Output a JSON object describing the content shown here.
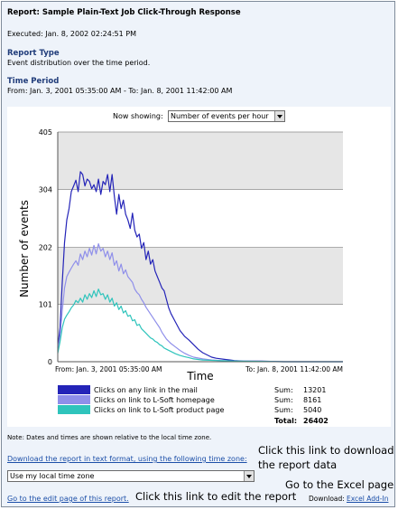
{
  "report": {
    "title": "Report: Sample Plain-Text Job Click-Through Response",
    "executed": "Executed: Jan. 8, 2002 02:24:51 PM",
    "type_heading": "Report Type",
    "type_text": "Event distribution over the time period.",
    "period_heading": "Time Period",
    "period_text": "From: Jan. 3, 2001 05:35:00 AM - To: Jan. 8, 2001 11:42:00 AM"
  },
  "controls": {
    "now_showing_label": "Now showing:",
    "now_showing_value": "Number of events per hour"
  },
  "chart_data": {
    "type": "line",
    "ylabel": "Number of events",
    "xlabel": "Time",
    "y_ticks": [
      0,
      101,
      202,
      304,
      405
    ],
    "ylim": [
      0,
      405
    ],
    "x_tick_labels": [
      "From: Jan. 3, 2001 05:35:00 AM",
      "To: Jan. 8, 2001 11:42:00 AM"
    ],
    "x_range_hours": [
      0,
      126
    ],
    "grid": true,
    "series": [
      {
        "name": "Clicks on any link in the mail",
        "color": "#2424b8",
        "sum": "13201",
        "points": [
          [
            0,
            25
          ],
          [
            1,
            60
          ],
          [
            2,
            140
          ],
          [
            3,
            210
          ],
          [
            4,
            250
          ],
          [
            5,
            270
          ],
          [
            6,
            300
          ],
          [
            7,
            310
          ],
          [
            8,
            320
          ],
          [
            9,
            300
          ],
          [
            10,
            335
          ],
          [
            11,
            330
          ],
          [
            12,
            310
          ],
          [
            13,
            322
          ],
          [
            14,
            318
          ],
          [
            15,
            305
          ],
          [
            16,
            312
          ],
          [
            17,
            300
          ],
          [
            18,
            322
          ],
          [
            19,
            295
          ],
          [
            20,
            318
          ],
          [
            21,
            312
          ],
          [
            22,
            330
          ],
          [
            23,
            300
          ],
          [
            24,
            330
          ],
          [
            25,
            292
          ],
          [
            26,
            260
          ],
          [
            27,
            295
          ],
          [
            28,
            270
          ],
          [
            29,
            285
          ],
          [
            30,
            260
          ],
          [
            31,
            250
          ],
          [
            32,
            235
          ],
          [
            33,
            262
          ],
          [
            34,
            232
          ],
          [
            35,
            220
          ],
          [
            36,
            225
          ],
          [
            37,
            200
          ],
          [
            38,
            210
          ],
          [
            39,
            180
          ],
          [
            40,
            195
          ],
          [
            41,
            172
          ],
          [
            42,
            180
          ],
          [
            43,
            160
          ],
          [
            44,
            150
          ],
          [
            45,
            140
          ],
          [
            46,
            130
          ],
          [
            47,
            125
          ],
          [
            48,
            110
          ],
          [
            49,
            95
          ],
          [
            50,
            85
          ],
          [
            52,
            70
          ],
          [
            54,
            55
          ],
          [
            56,
            45
          ],
          [
            58,
            38
          ],
          [
            60,
            30
          ],
          [
            62,
            22
          ],
          [
            64,
            16
          ],
          [
            66,
            12
          ],
          [
            68,
            8
          ],
          [
            70,
            6
          ],
          [
            74,
            4
          ],
          [
            78,
            2
          ],
          [
            82,
            1
          ],
          [
            90,
            1
          ],
          [
            100,
            0
          ],
          [
            126,
            0
          ]
        ]
      },
      {
        "name": "Clicks on link to L-Soft homepage",
        "color": "#8f8fea",
        "sum": "8161",
        "points": [
          [
            0,
            20
          ],
          [
            1,
            45
          ],
          [
            2,
            90
          ],
          [
            3,
            130
          ],
          [
            4,
            150
          ],
          [
            5,
            158
          ],
          [
            6,
            165
          ],
          [
            7,
            172
          ],
          [
            8,
            178
          ],
          [
            9,
            170
          ],
          [
            10,
            190
          ],
          [
            11,
            180
          ],
          [
            12,
            195
          ],
          [
            13,
            185
          ],
          [
            14,
            200
          ],
          [
            15,
            188
          ],
          [
            16,
            205
          ],
          [
            17,
            190
          ],
          [
            18,
            208
          ],
          [
            19,
            195
          ],
          [
            20,
            200
          ],
          [
            21,
            185
          ],
          [
            22,
            195
          ],
          [
            23,
            180
          ],
          [
            24,
            192
          ],
          [
            25,
            170
          ],
          [
            26,
            178
          ],
          [
            27,
            160
          ],
          [
            28,
            172
          ],
          [
            29,
            155
          ],
          [
            30,
            162
          ],
          [
            31,
            150
          ],
          [
            32,
            145
          ],
          [
            33,
            140
          ],
          [
            34,
            128
          ],
          [
            35,
            122
          ],
          [
            36,
            118
          ],
          [
            37,
            110
          ],
          [
            38,
            104
          ],
          [
            39,
            96
          ],
          [
            40,
            90
          ],
          [
            41,
            84
          ],
          [
            42,
            78
          ],
          [
            43,
            72
          ],
          [
            44,
            66
          ],
          [
            45,
            60
          ],
          [
            46,
            52
          ],
          [
            47,
            46
          ],
          [
            48,
            40
          ],
          [
            50,
            32
          ],
          [
            52,
            26
          ],
          [
            54,
            20
          ],
          [
            56,
            15
          ],
          [
            58,
            11
          ],
          [
            60,
            8
          ],
          [
            64,
            5
          ],
          [
            68,
            3
          ],
          [
            72,
            2
          ],
          [
            80,
            1
          ],
          [
            100,
            0
          ],
          [
            126,
            0
          ]
        ]
      },
      {
        "name": "Clicks on link to L-Soft product page",
        "color": "#2fc4bc",
        "sum": "5040",
        "points": [
          [
            0,
            15
          ],
          [
            1,
            35
          ],
          [
            2,
            60
          ],
          [
            3,
            75
          ],
          [
            4,
            82
          ],
          [
            5,
            88
          ],
          [
            6,
            95
          ],
          [
            7,
            100
          ],
          [
            8,
            108
          ],
          [
            9,
            104
          ],
          [
            10,
            112
          ],
          [
            11,
            105
          ],
          [
            12,
            118
          ],
          [
            13,
            110
          ],
          [
            14,
            120
          ],
          [
            15,
            113
          ],
          [
            16,
            125
          ],
          [
            17,
            115
          ],
          [
            18,
            128
          ],
          [
            19,
            118
          ],
          [
            20,
            120
          ],
          [
            21,
            110
          ],
          [
            22,
            118
          ],
          [
            23,
            105
          ],
          [
            24,
            112
          ],
          [
            25,
            98
          ],
          [
            26,
            104
          ],
          [
            27,
            92
          ],
          [
            28,
            98
          ],
          [
            29,
            86
          ],
          [
            30,
            90
          ],
          [
            31,
            80
          ],
          [
            32,
            82
          ],
          [
            33,
            72
          ],
          [
            34,
            74
          ],
          [
            35,
            64
          ],
          [
            36,
            66
          ],
          [
            37,
            58
          ],
          [
            38,
            54
          ],
          [
            39,
            50
          ],
          [
            40,
            46
          ],
          [
            41,
            42
          ],
          [
            42,
            40
          ],
          [
            43,
            36
          ],
          [
            44,
            34
          ],
          [
            45,
            30
          ],
          [
            46,
            28
          ],
          [
            47,
            24
          ],
          [
            48,
            22
          ],
          [
            50,
            18
          ],
          [
            52,
            14
          ],
          [
            54,
            11
          ],
          [
            56,
            9
          ],
          [
            58,
            7
          ],
          [
            60,
            5
          ],
          [
            64,
            3
          ],
          [
            70,
            2
          ],
          [
            80,
            1
          ],
          [
            100,
            0
          ],
          [
            126,
            0
          ]
        ]
      }
    ],
    "total_label": "Total:",
    "total": "26402"
  },
  "legend": {
    "sum_label": "Sum:"
  },
  "footer": {
    "note": "Note: Dates and times are shown relative to the local time zone.",
    "download_link": "Download the report in text format, using the following time zone:",
    "timezone_value": "Use my local time zone",
    "edit_link": "Go to the edit page of this report.",
    "download_label": "Download:",
    "excel_link": "Excel Add-In"
  },
  "annotations": {
    "download_note_line1": "Click this link to download",
    "download_note_line2": "the report data",
    "excel_note": "Go to the Excel page",
    "edit_note": "Click this link to edit the report"
  }
}
